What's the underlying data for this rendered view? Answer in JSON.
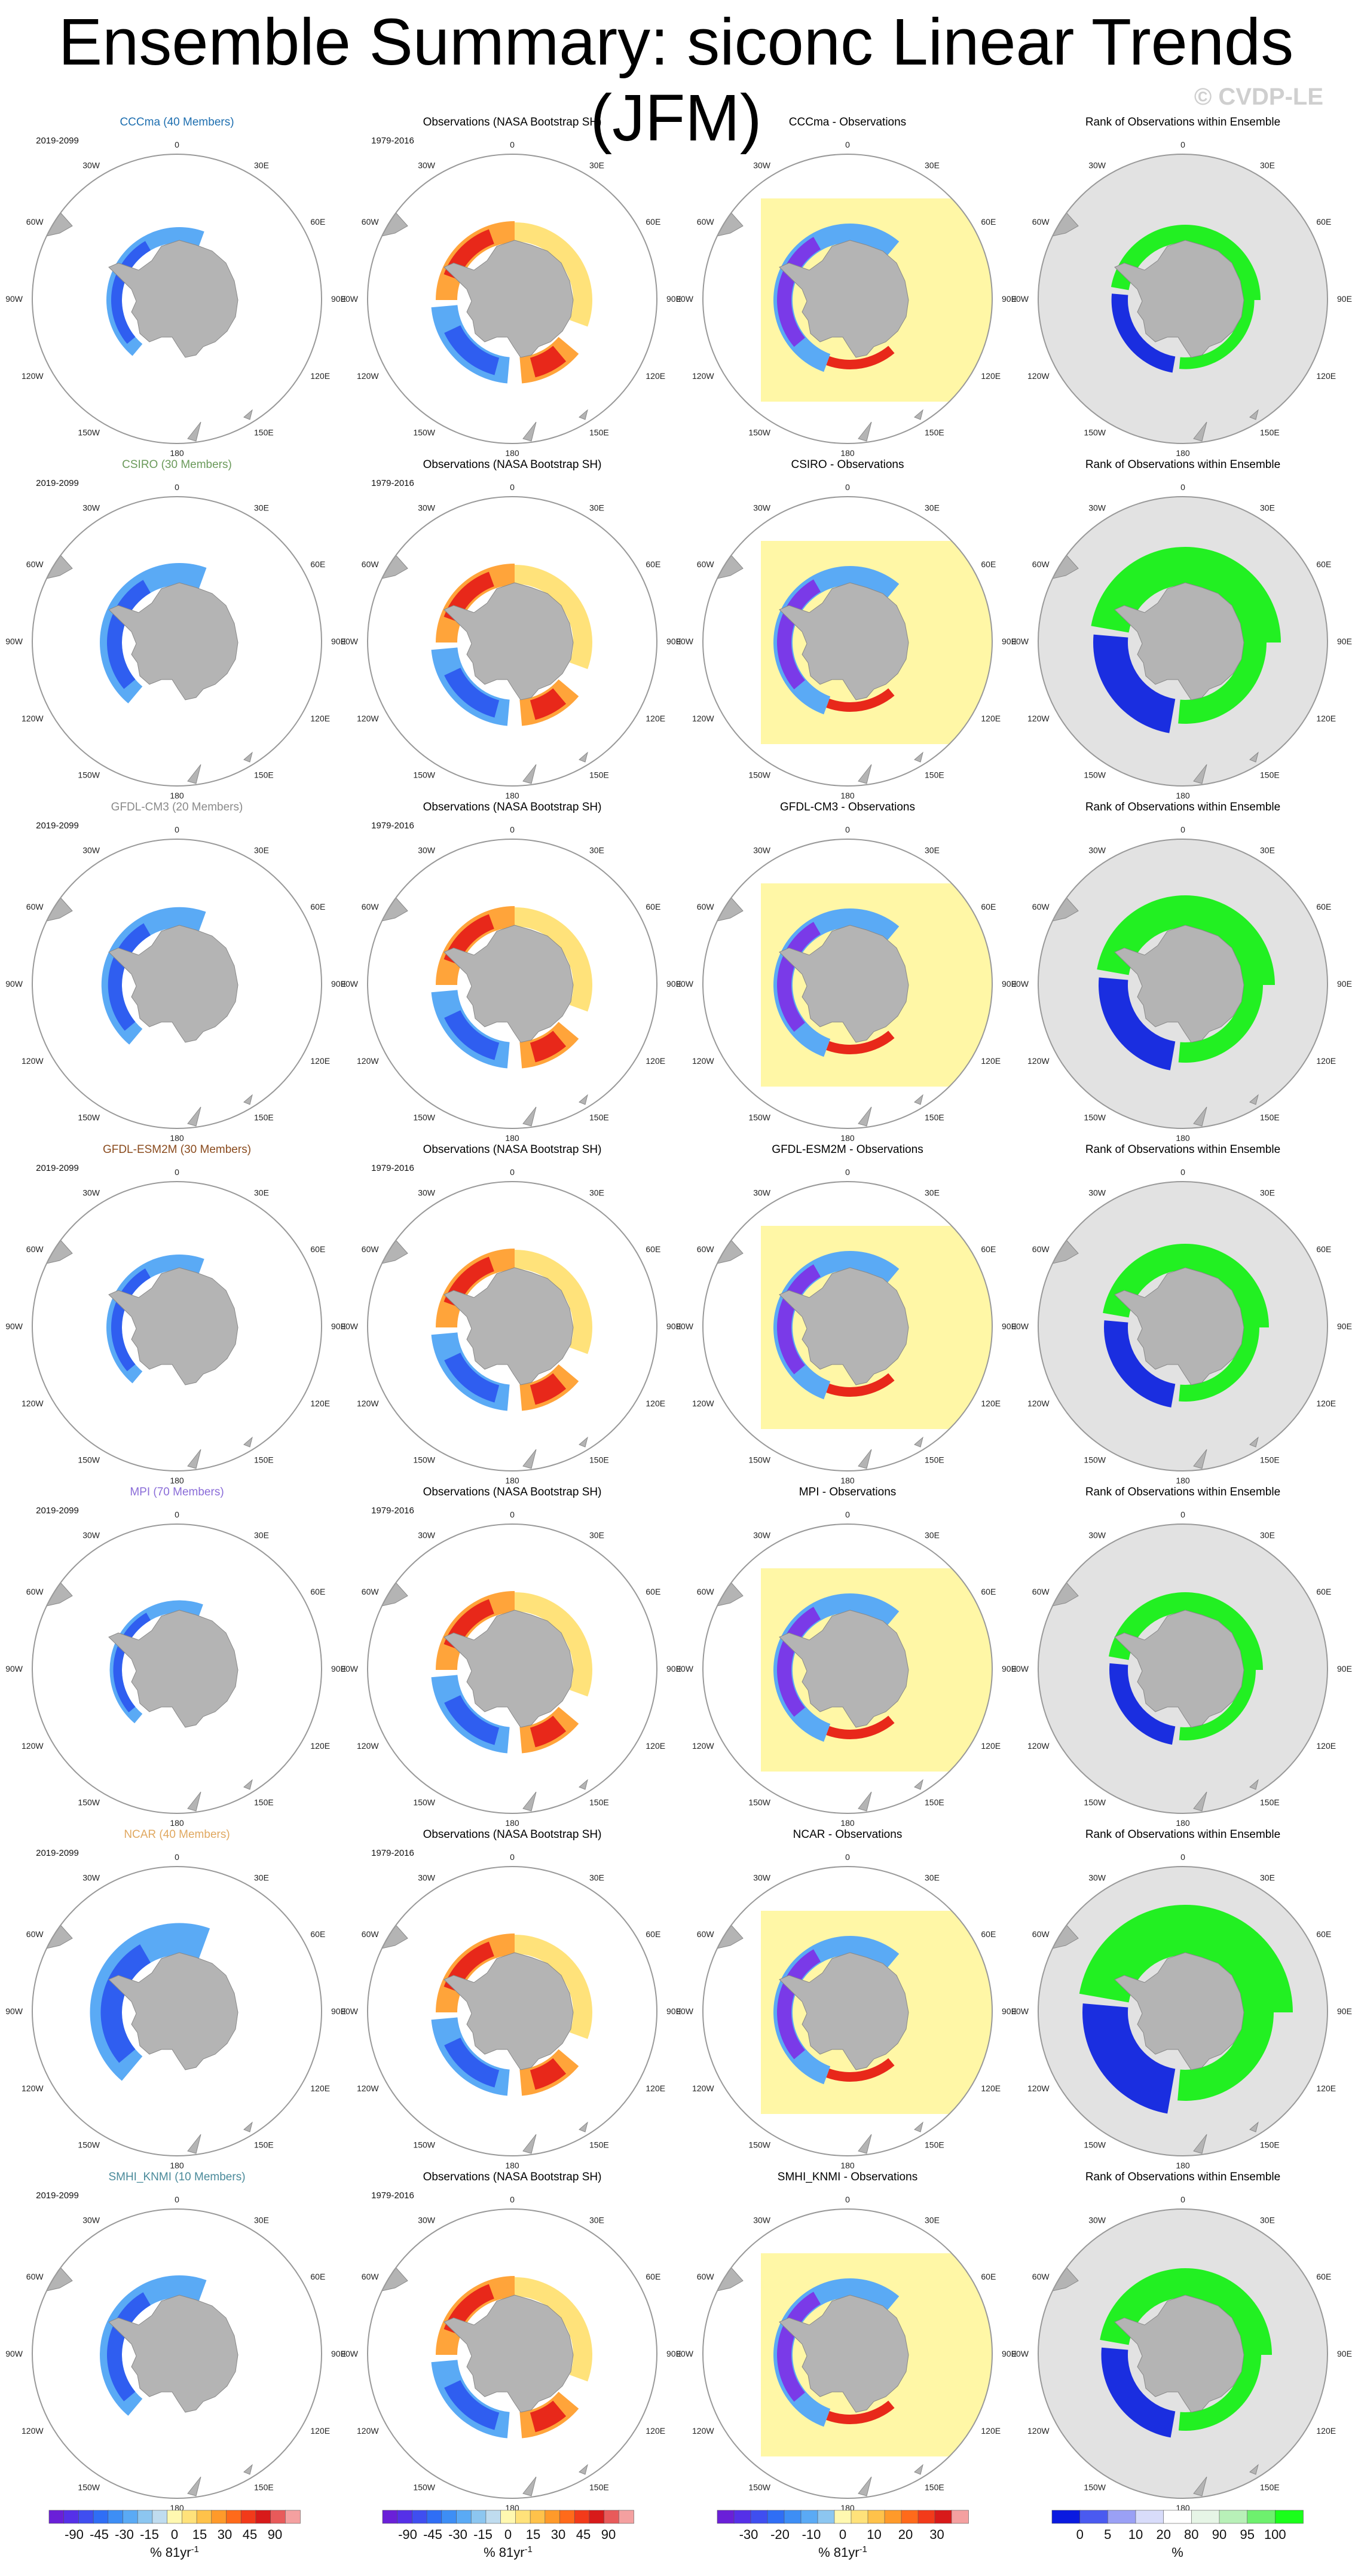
{
  "header": {
    "title": "Ensemble Summary: siconc Linear Trends (JFM)",
    "watermark": "© CVDP-LE"
  },
  "labels": {
    "model_period": "2019-2099",
    "obs_period": "1979-2016",
    "obs_title": "Observations (NASA Bootstrap SH)",
    "rank_title": "Rank of Observations within Ensemble",
    "diff_suffix": " - Observations"
  },
  "lon_labels": {
    "0": "0",
    "30E": "30E",
    "60E": "60E",
    "90E": "90E",
    "120E": "120E",
    "150E": "150E",
    "180": "180",
    "150W": "150W",
    "120W": "120W",
    "90W": "90W",
    "60W": "60W",
    "30W": "30W"
  },
  "models": [
    {
      "name": "CCCma",
      "members": "CCCma (40 Members)",
      "color": "#1e6fb0"
    },
    {
      "name": "CSIRO",
      "members": "CSIRO (30 Members)",
      "color": "#6b9a5b"
    },
    {
      "name": "GFDL-CM3",
      "members": "GFDL-CM3 (20 Members)",
      "color": "#8a8a8a"
    },
    {
      "name": "GFDL-ESM2M",
      "members": "GFDL-ESM2M (30 Members)",
      "color": "#8a4b1e"
    },
    {
      "name": "MPI",
      "members": "MPI (70 Members)",
      "color": "#8a6cd8"
    },
    {
      "name": "NCAR",
      "members": "NCAR (40 Members)",
      "color": "#e0a860"
    },
    {
      "name": "SMHI_KNMI",
      "members": "SMHI_KNMI (10 Members)",
      "color": "#4a8a9a"
    }
  ],
  "colorbars": {
    "trend": {
      "ticks": [
        "-90",
        "-45",
        "-30",
        "-15",
        "0",
        "15",
        "30",
        "45",
        "90"
      ],
      "unit": "% 81yr",
      "unit_sup": "-1",
      "colors": [
        "#6a1fd8",
        "#5530e8",
        "#3f4ef0",
        "#2f6ef5",
        "#3d8ef5",
        "#5aaaf5",
        "#8cc6f0",
        "#bfdcef",
        "#fff8b0",
        "#ffe27a",
        "#ffc24a",
        "#ff9a2a",
        "#ff6a1a",
        "#f23a1a",
        "#d81a1a",
        "#e85a5a",
        "#f4a0a0"
      ]
    },
    "trend_obs": {
      "ticks": [
        "-90",
        "-45",
        "-30",
        "-15",
        "0",
        "15",
        "30",
        "45",
        "90"
      ],
      "unit": "% 81yr",
      "unit_sup": "-1",
      "colors": [
        "#6a1fd8",
        "#5530e8",
        "#3f4ef0",
        "#2f6ef5",
        "#3d8ef5",
        "#5aaaf5",
        "#8cc6f0",
        "#bfdcef",
        "#fff8b0",
        "#ffe27a",
        "#ffc24a",
        "#ff9a2a",
        "#ff6a1a",
        "#f23a1a",
        "#d81a1a",
        "#e85a5a",
        "#f4a0a0"
      ]
    },
    "diff": {
      "ticks": [
        "-30",
        "-20",
        "-10",
        "0",
        "10",
        "20",
        "30"
      ],
      "unit": "% 81yr",
      "unit_sup": "-1",
      "colors": [
        "#6a1fd8",
        "#5530e8",
        "#3f4ef0",
        "#2f6ef5",
        "#3d8ef5",
        "#5aaaf5",
        "#8cc6f0",
        "#fff8b0",
        "#ffe27a",
        "#ffc24a",
        "#ff9a2a",
        "#ff6a1a",
        "#f23a1a",
        "#d81a1a",
        "#f4a0a0"
      ]
    },
    "rank": {
      "ticks": [
        "0",
        "5",
        "10",
        "20",
        "80",
        "90",
        "95",
        "100"
      ],
      "unit": "%",
      "colors": [
        "#0a1ae0",
        "#4a5af0",
        "#9aa0f5",
        "#d8dcfa",
        "#ffffff",
        "#e6f5e6",
        "#b8f0b8",
        "#6ef06e",
        "#1aff1a"
      ]
    }
  },
  "palette": {
    "ice_light": "#bfdcef",
    "ice_mid": "#5aaaf5",
    "ice_dark": "#2f5ef0",
    "deep_blue": "#1a2ee0",
    "purple": "#7a3ae8",
    "yellow": "#fff7a6",
    "orange": "#ffa43a",
    "red": "#e8281a",
    "green": "#22f022",
    "rank_bg": "#e2e2e2",
    "land": "#b4b4b4"
  },
  "chart_data": [
    {
      "type": "heatmap",
      "title": "CCCma (40 Members)",
      "subtitle": "2019-2099",
      "projection": "south-polar-stereographic",
      "field": "siconc linear trend"
    },
    {
      "type": "heatmap",
      "title": "Observations (NASA Bootstrap SH)",
      "subtitle": "1979-2016",
      "projection": "south-polar-stereographic"
    },
    {
      "type": "heatmap",
      "title": "CCCma - Observations",
      "projection": "south-polar-stereographic"
    },
    {
      "type": "heatmap",
      "title": "Rank of Observations within Ensemble",
      "projection": "south-polar-stereographic"
    }
  ]
}
